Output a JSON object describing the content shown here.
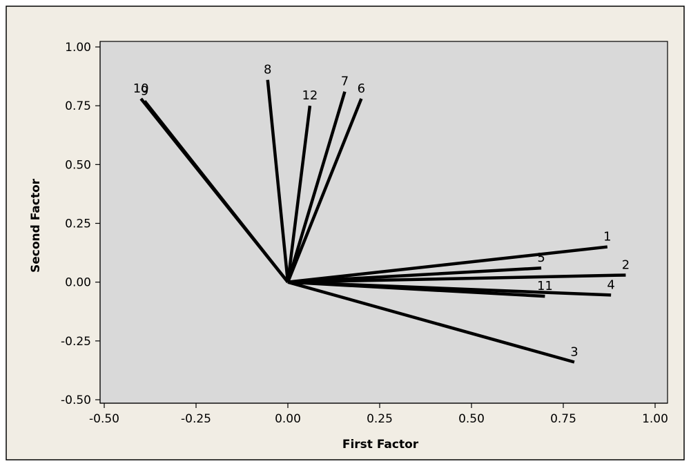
{
  "colors": {
    "figure_background": "#F1EDE4",
    "plot_background": "#D9D9D9",
    "line": "#000000"
  },
  "chart_data": {
    "type": "line",
    "title": "",
    "xlabel": "First Factor",
    "ylabel": "Second Factor",
    "xlim": [
      -0.5,
      1.0
    ],
    "ylim": [
      -0.5,
      1.0
    ],
    "x_ticks": [
      "-0.50",
      "-0.25",
      "0.00",
      "0.25",
      "0.50",
      "0.75",
      "1.00"
    ],
    "y_ticks": [
      "-0.50",
      "-0.25",
      "0.00",
      "0.25",
      "0.50",
      "0.75",
      "1.00"
    ],
    "origin": [
      0.0,
      0.0
    ],
    "grid": false,
    "vectors": [
      {
        "label": "1",
        "x": 0.87,
        "y": 0.15
      },
      {
        "label": "2",
        "x": 0.92,
        "y": 0.03
      },
      {
        "label": "3",
        "x": 0.78,
        "y": -0.34
      },
      {
        "label": "4",
        "x": 0.88,
        "y": -0.055
      },
      {
        "label": "5",
        "x": 0.69,
        "y": 0.06
      },
      {
        "label": "6",
        "x": 0.2,
        "y": 0.78
      },
      {
        "label": "7",
        "x": 0.155,
        "y": 0.81
      },
      {
        "label": "8",
        "x": -0.055,
        "y": 0.86
      },
      {
        "label": "9",
        "x": -0.39,
        "y": 0.77
      },
      {
        "label": "10",
        "x": -0.4,
        "y": 0.78
      },
      {
        "label": "11",
        "x": 0.7,
        "y": -0.06
      },
      {
        "label": "12",
        "x": 0.06,
        "y": 0.75
      }
    ]
  }
}
